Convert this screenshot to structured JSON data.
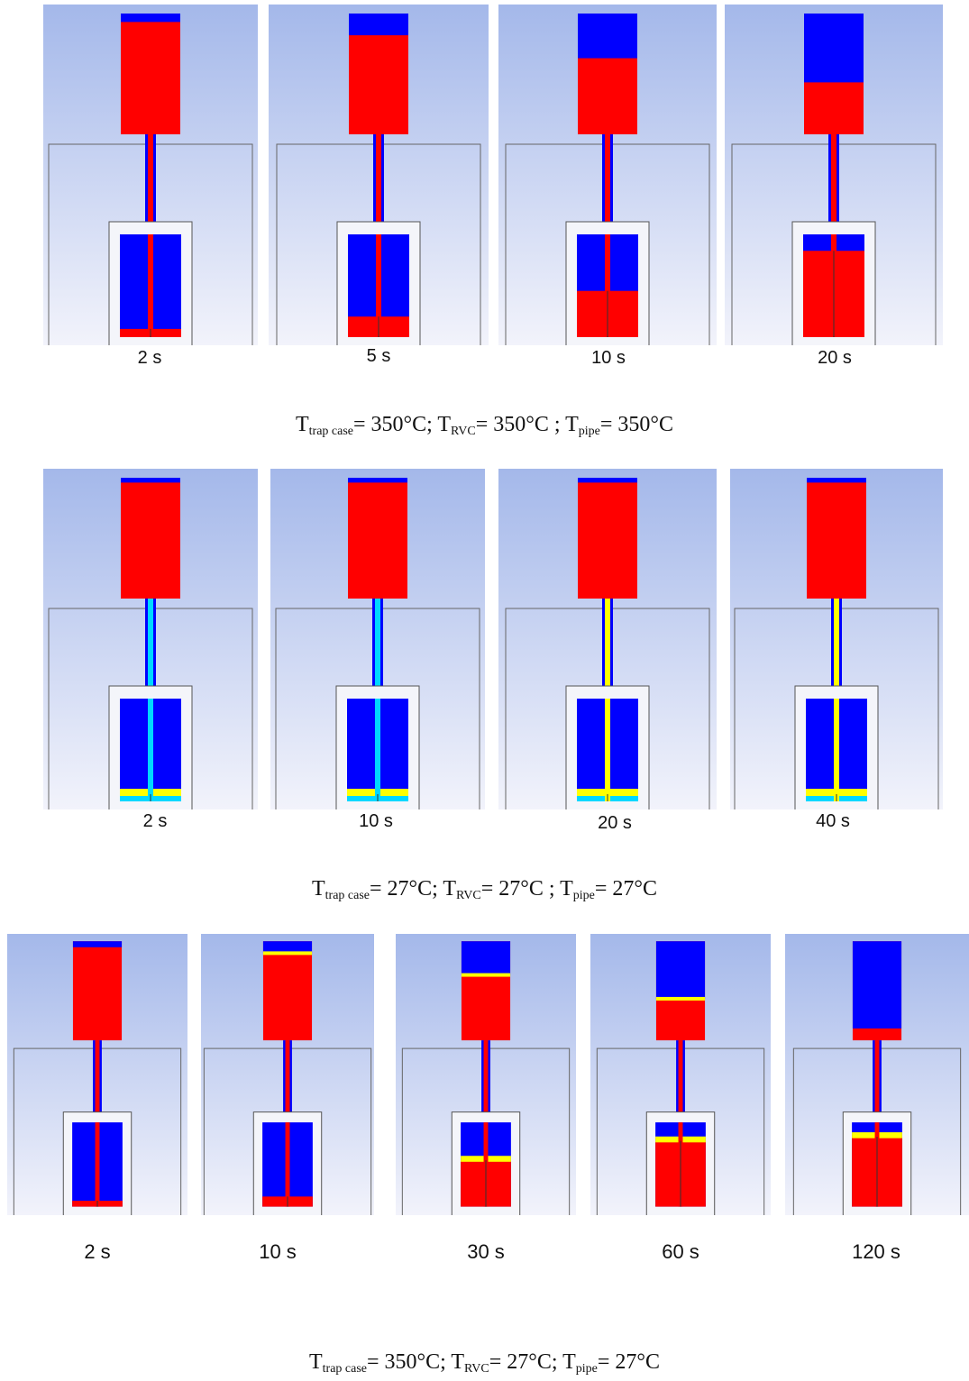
{
  "rows": [
    {
      "times": [
        "2 s",
        "5 s",
        "10 s",
        "20 s"
      ],
      "blue_fraction": [
        0.07,
        0.18,
        0.37,
        0.57
      ],
      "trap_red_fraction": [
        0.08,
        0.2,
        0.45,
        0.84
      ],
      "caption": [
        {
          "base": "T",
          "sub": "trap case"
        },
        {
          "text": "= 350°C; "
        },
        {
          "base": "T",
          "sub": "RVC"
        },
        {
          "text": "= 350°C ; "
        },
        {
          "base": "T",
          "sub": "pipe"
        },
        {
          "text": "= 350°C"
        }
      ]
    },
    {
      "times": [
        "2 s",
        "10 s",
        "20 s",
        "40 s"
      ],
      "caption": [
        {
          "base": "T",
          "sub": "trap case"
        },
        {
          "text": "= 27°C; "
        },
        {
          "base": "T",
          "sub": "RVC"
        },
        {
          "text": "= 27°C ; "
        },
        {
          "base": "T",
          "sub": "pipe"
        },
        {
          "text": "= 27°C"
        }
      ]
    },
    {
      "times": [
        "2 s",
        "10 s",
        "30 s",
        "60 s",
        "120 s"
      ],
      "blue_fraction": [
        0.06,
        0.12,
        0.34,
        0.58,
        0.88
      ],
      "caption": [
        {
          "base": "T",
          "sub": "trap case"
        },
        {
          "text": "= 350°C; "
        },
        {
          "base": "T",
          "sub": "RVC"
        },
        {
          "text": "= 27°C; "
        },
        {
          "base": "T",
          "sub": "pipe"
        },
        {
          "text": "= 27°C"
        }
      ]
    }
  ],
  "colors": {
    "liquid": "#ff0000",
    "gas": "#0000ff",
    "interface_yellow": "#ffff00",
    "interface_cyan": "#00d8ff",
    "background_top": "#a4b8ea",
    "background_bottom": "#f2f3fb"
  }
}
